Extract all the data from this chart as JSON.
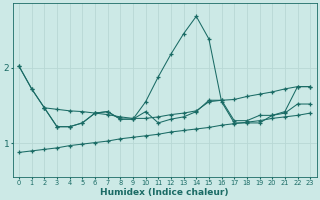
{
  "xlabel": "Humidex (Indice chaleur)",
  "xlim": [
    -0.5,
    23.5
  ],
  "ylim": [
    0.55,
    2.85
  ],
  "yticks": [
    1,
    2
  ],
  "xticks": [
    0,
    1,
    2,
    3,
    4,
    5,
    6,
    7,
    8,
    9,
    10,
    11,
    12,
    13,
    14,
    15,
    16,
    17,
    18,
    19,
    20,
    21,
    22,
    23
  ],
  "bg_color": "#cce9e6",
  "line_color": "#1a6b65",
  "grid_color": "#b8d8d5",
  "line_spike": {
    "x": [
      0,
      1,
      2,
      3,
      4,
      5,
      6,
      7,
      8,
      9,
      10,
      11,
      12,
      13,
      14,
      15,
      16,
      17,
      18,
      19,
      20,
      21,
      22,
      23
    ],
    "y": [
      2.02,
      1.72,
      1.47,
      1.22,
      1.22,
      1.27,
      1.4,
      1.42,
      1.32,
      1.32,
      1.55,
      1.88,
      2.18,
      2.45,
      2.68,
      2.38,
      1.55,
      1.27,
      1.27,
      1.27,
      1.37,
      1.42,
      1.75,
      1.75
    ]
  },
  "line_upper": {
    "x": [
      0,
      1,
      2,
      3,
      4,
      5,
      6,
      7,
      8,
      9,
      10,
      11,
      12,
      13,
      14,
      15,
      16,
      17,
      18,
      19,
      20,
      21,
      22,
      23
    ],
    "y": [
      2.02,
      1.72,
      1.47,
      1.45,
      1.43,
      1.42,
      1.4,
      1.38,
      1.35,
      1.33,
      1.33,
      1.35,
      1.38,
      1.4,
      1.43,
      1.55,
      1.57,
      1.58,
      1.62,
      1.65,
      1.68,
      1.72,
      1.75,
      1.75
    ]
  },
  "line_mid": {
    "x": [
      2,
      3,
      4,
      5,
      6,
      7,
      8,
      9,
      10,
      11,
      12,
      13,
      14,
      15,
      16,
      17,
      18,
      19,
      20,
      21,
      22,
      23
    ],
    "y": [
      1.47,
      1.22,
      1.22,
      1.27,
      1.4,
      1.42,
      1.32,
      1.32,
      1.42,
      1.27,
      1.32,
      1.35,
      1.42,
      1.57,
      1.57,
      1.3,
      1.3,
      1.37,
      1.37,
      1.4,
      1.52,
      1.52
    ]
  },
  "line_lower": {
    "x": [
      0,
      1,
      2,
      3,
      4,
      5,
      6,
      7,
      8,
      9,
      10,
      11,
      12,
      13,
      14,
      15,
      16,
      17,
      18,
      19,
      20,
      21,
      22,
      23
    ],
    "y": [
      0.88,
      0.9,
      0.92,
      0.94,
      0.97,
      0.99,
      1.01,
      1.03,
      1.06,
      1.08,
      1.1,
      1.12,
      1.15,
      1.17,
      1.19,
      1.21,
      1.24,
      1.26,
      1.28,
      1.3,
      1.33,
      1.35,
      1.37,
      1.4
    ]
  }
}
